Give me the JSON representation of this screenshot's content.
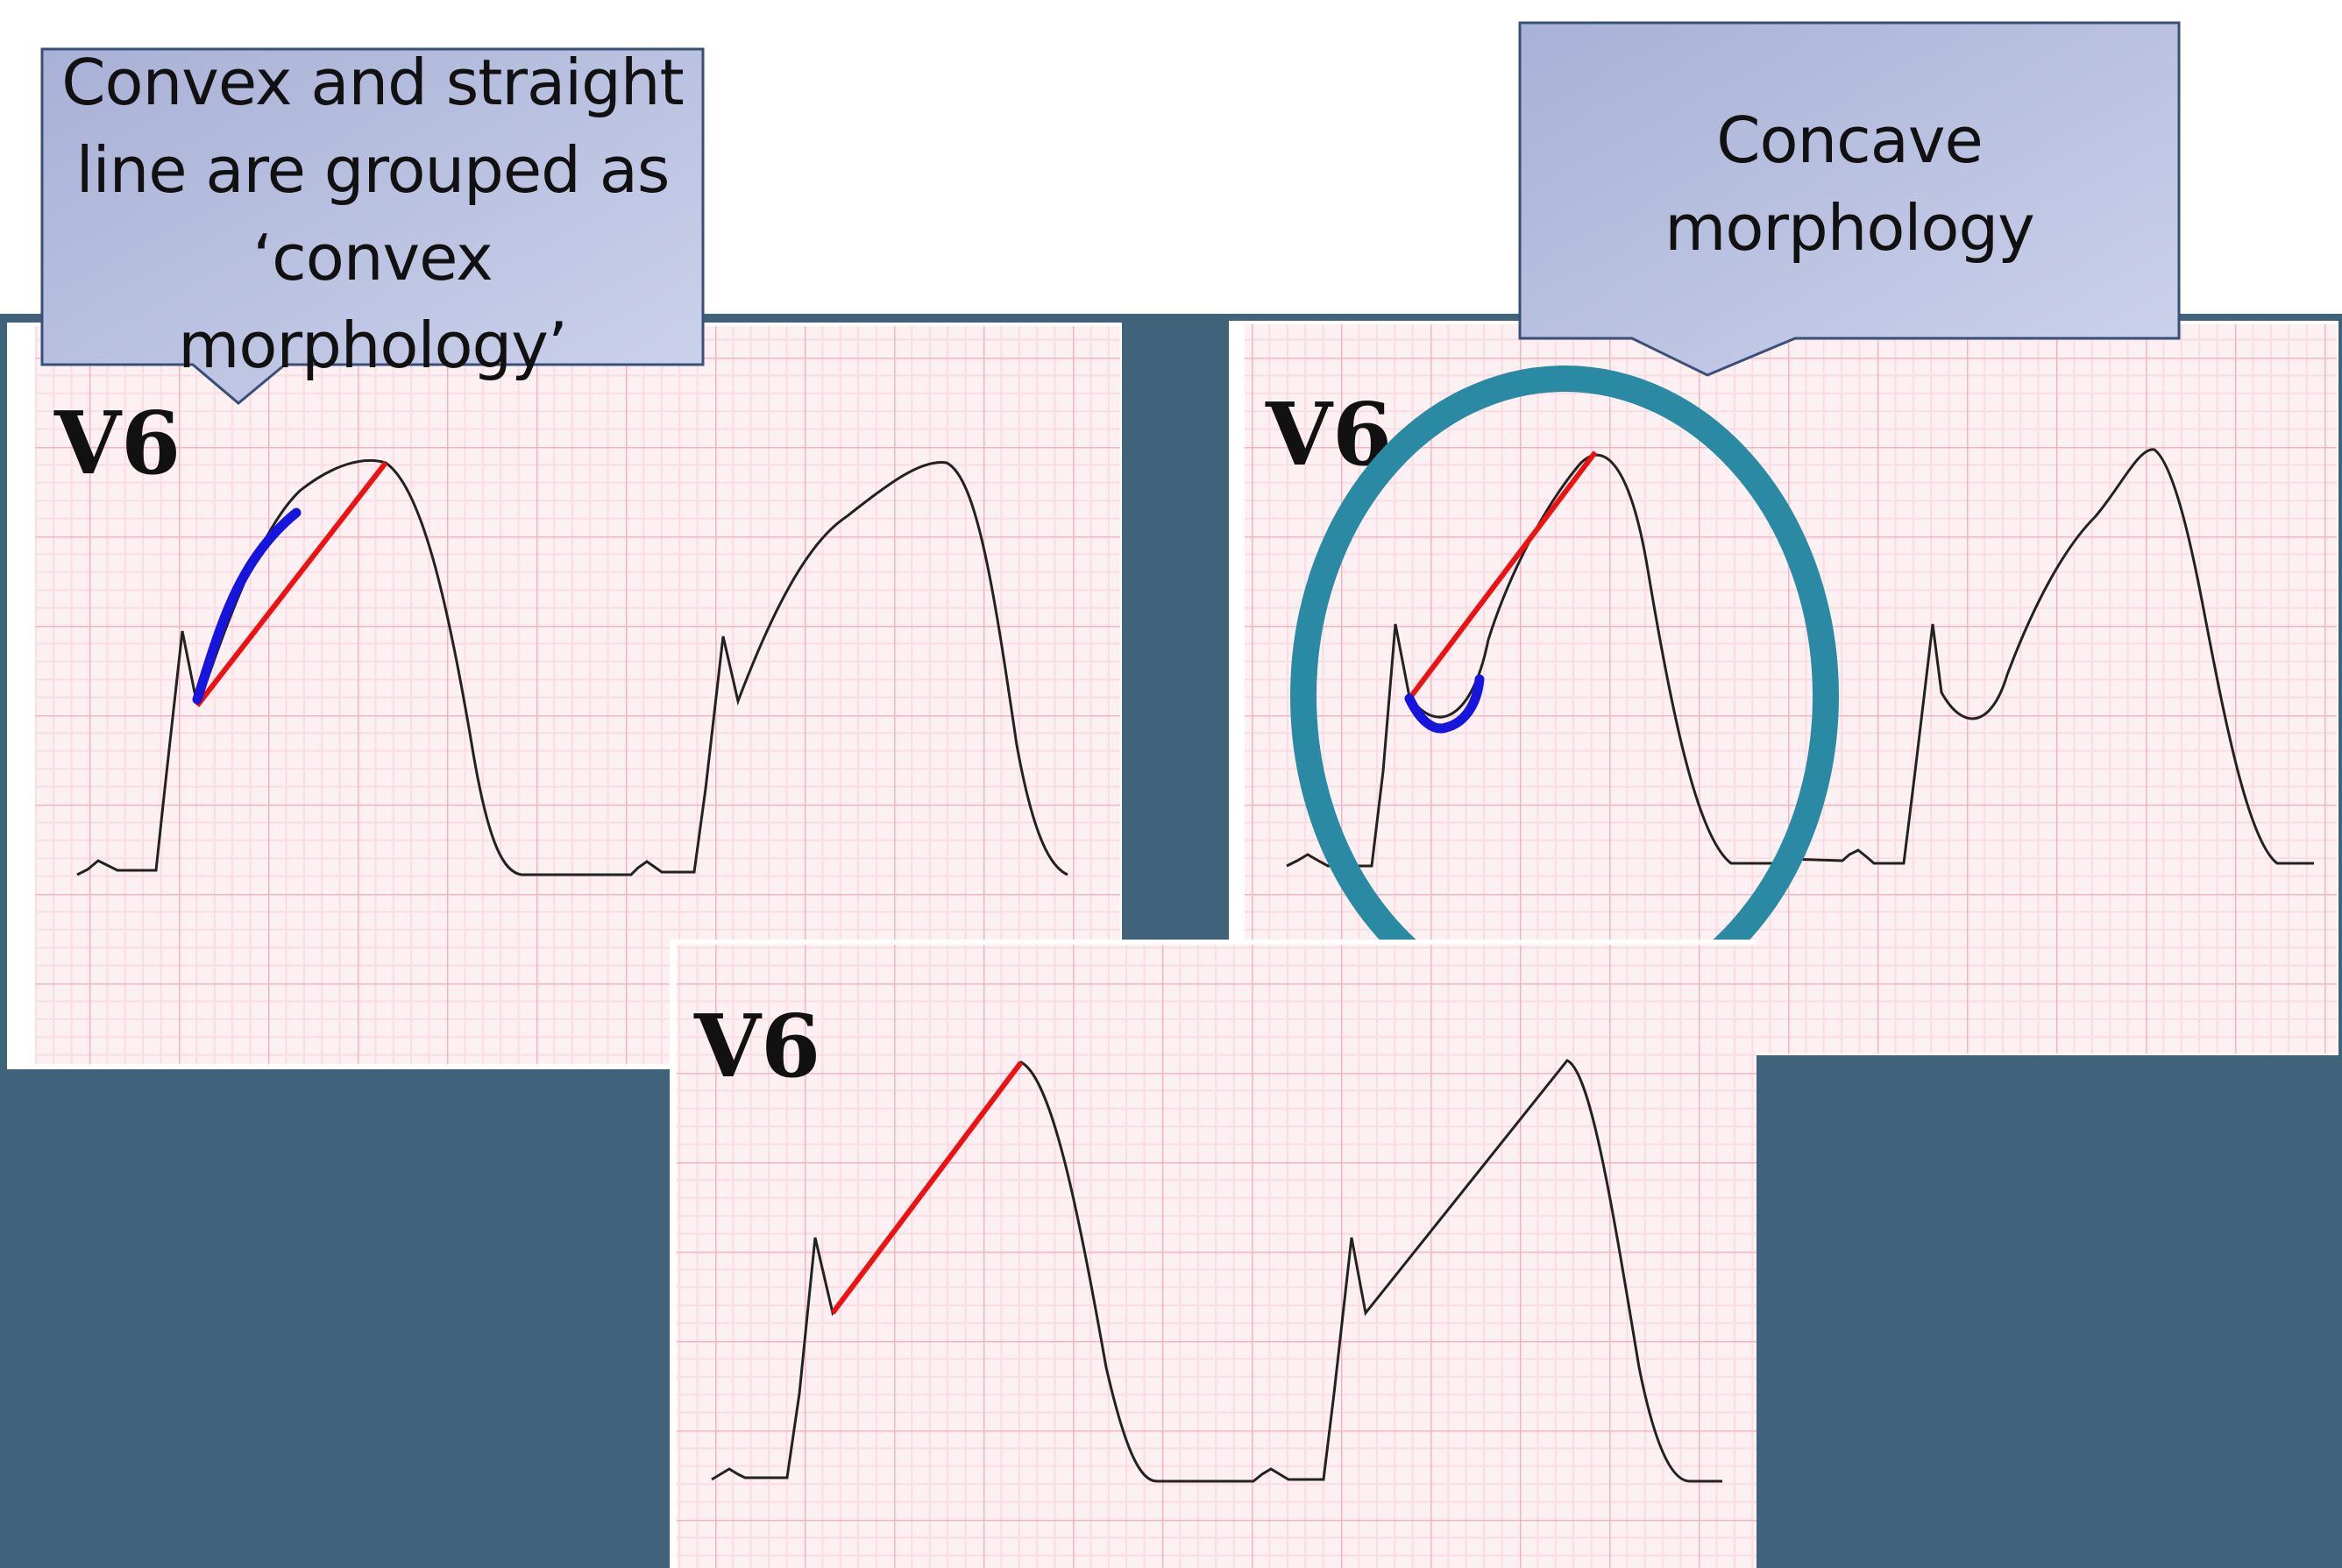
{
  "callouts": {
    "convex": {
      "lines": [
        "Convex and straight",
        "line are grouped as",
        "‘convex",
        "morphology’"
      ]
    },
    "concave": {
      "lines": [
        "Concave",
        "morphology"
      ]
    }
  },
  "panels": {
    "top_left": {
      "lead_label": "V6"
    },
    "top_right": {
      "lead_label": "V6"
    },
    "bottom_center": {
      "lead_label": "V6"
    }
  },
  "colors": {
    "background_panel": "#40627a",
    "ecg_paper": "#fdf0f2",
    "ecg_grid_major": "#f2b6c2",
    "ecg_grid_minor": "#f9dde3",
    "trace": "#222222",
    "straight_line_marker": "#ee1111",
    "curve_marker": "#1515dd",
    "highlight_ring": "#2b8aa3",
    "callout_fill_top": "#aab3d8",
    "callout_fill_bottom": "#c9cfea"
  },
  "icons": {
    "highlight": "circle-highlight-ring"
  }
}
